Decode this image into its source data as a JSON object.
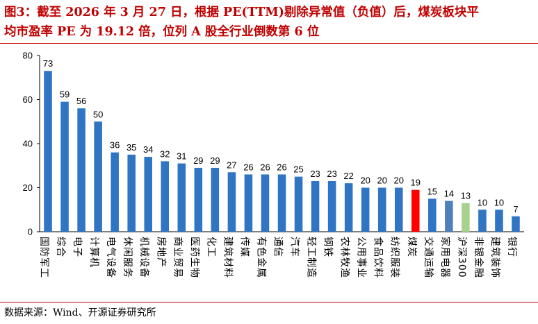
{
  "title": {
    "line1": "图3：截至 2026 年 3 月 27 日，根据 PE(TTM)剔除异常值（负值）后，煤炭板块平",
    "line2": "均市盈率 PE 为 19.12 倍，位列 A 股全行业倒数第 6 位"
  },
  "source": "数据来源：Wind、开源证券研究所",
  "colors": {
    "default_bar": "#2f75c3",
    "coal_bar": "#ff0000",
    "home_appliance_bar": "#4e80bd",
    "csi300_bar": "#a9d18e",
    "title": "#c00000",
    "rule": "#c00000"
  },
  "chart_data": {
    "type": "bar",
    "title": "",
    "xlabel": "",
    "ylabel": "",
    "ylim": [
      0,
      80
    ],
    "yticks": [
      0,
      20,
      40,
      60,
      80
    ],
    "grid": false,
    "legend": "none",
    "categories": [
      "国防军工",
      "综合",
      "电子",
      "计算机",
      "电气设备",
      "休闲服务",
      "机械设备",
      "房地产",
      "商业贸易",
      "医药生物",
      "化工",
      "建筑材料",
      "传媒",
      "有色金属",
      "通信",
      "汽车",
      "轻工制造",
      "钢铁",
      "农林牧渔",
      "公用事业",
      "食品饮料",
      "纺织服装",
      "煤炭",
      "交通运输",
      "家用电器",
      "沪深300",
      "非银金融",
      "建筑装饰",
      "银行"
    ],
    "values": [
      73,
      59,
      56,
      50,
      36,
      35,
      34,
      32,
      31,
      29,
      29,
      27,
      26,
      26,
      26,
      25,
      23,
      23,
      22,
      20,
      20,
      20,
      19,
      15,
      14,
      13,
      10,
      10,
      7
    ],
    "highlight": {
      "煤炭": "coal_bar",
      "家用电器": "home_appliance_bar",
      "沪深300": "csi300_bar"
    }
  }
}
